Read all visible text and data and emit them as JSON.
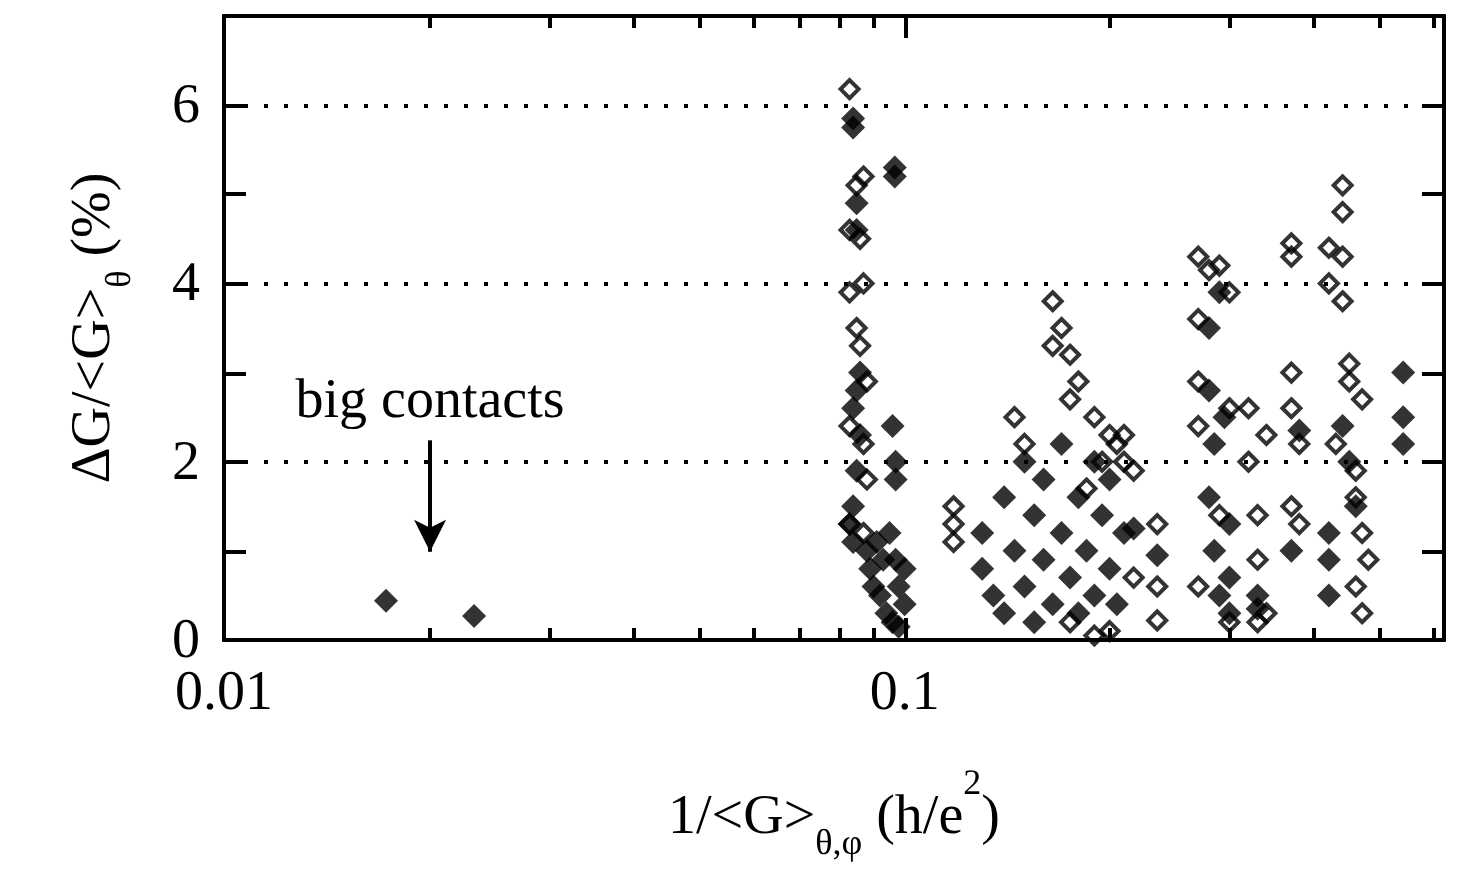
{
  "chart_data": {
    "type": "scatter",
    "xlabel": "1/<G>$_{θ,φ}$ (h/e$^{2}$)",
    "ylabel": "ΔG/<G>$_{θ}$ (%)",
    "log": "x",
    "marker": "diamond",
    "grid": "y",
    "xlim": [
      0.01,
      0.62
    ],
    "xticks": [
      0.01,
      {
        "value": 0.02,
        "label": null
      },
      {
        "value": 0.03,
        "label": null
      },
      {
        "value": 0.04,
        "label": null
      },
      {
        "value": 0.05,
        "label": null
      },
      {
        "value": 0.06,
        "label": null
      },
      {
        "value": 0.07,
        "label": null
      },
      {
        "value": 0.08,
        "label": null
      },
      {
        "value": 0.09,
        "label": null
      },
      0.1,
      {
        "value": 0.2,
        "label": null
      },
      {
        "value": 0.3,
        "label": null
      },
      {
        "value": 0.4,
        "label": null
      },
      {
        "value": 0.5,
        "label": null
      },
      {
        "value": 0.6,
        "label": null
      }
    ],
    "ylim": [
      0,
      7
    ],
    "yticks": [
      0,
      2,
      4,
      6
    ],
    "annotations": [
      "big contacts"
    ],
    "series": [
      {
        "color": "#000000",
        "x": [
          0.0173,
          0.0233,
          0.084,
          0.084,
          0.085,
          0.085,
          0.086,
          0.085,
          0.084,
          0.086,
          0.085,
          0.084,
          0.083,
          0.084,
          0.0967,
          0.0967,
          0.096,
          0.097,
          0.097,
          0.088,
          0.089,
          0.09,
          0.092,
          0.094,
          0.096,
          0.098,
          0.097,
          0.095,
          0.098,
          0.1,
          0.1,
          0.093,
          0.091,
          0.13,
          0.13,
          0.135,
          0.14,
          0.14,
          0.145,
          0.15,
          0.15,
          0.155,
          0.155,
          0.16,
          0.16,
          0.165,
          0.17,
          0.17,
          0.175,
          0.18,
          0.18,
          0.185,
          0.19,
          0.19,
          0.195,
          0.2,
          0.2,
          0.205,
          0.21,
          0.217,
          0.235,
          0.28,
          0.28,
          0.285,
          0.28,
          0.285,
          0.29,
          0.29,
          0.3,
          0.3,
          0.295,
          0.3,
          0.33,
          0.33,
          0.38,
          0.37,
          0.42,
          0.42,
          0.42,
          0.44,
          0.45,
          0.46,
          0.54,
          0.54,
          0.54
        ],
        "values": [
          0.44,
          0.27,
          5.85,
          5.75,
          4.9,
          4.6,
          3.0,
          2.8,
          2.6,
          2.3,
          1.9,
          1.5,
          1.3,
          1.1,
          5.3,
          5.2,
          2.4,
          2.0,
          1.8,
          1.0,
          0.8,
          0.6,
          0.5,
          0.3,
          0.2,
          0.15,
          0.9,
          1.2,
          0.6,
          0.4,
          0.8,
          0.9,
          1.1,
          1.2,
          0.8,
          0.5,
          0.3,
          1.6,
          1.0,
          2.0,
          0.6,
          1.4,
          0.2,
          1.8,
          0.9,
          0.4,
          1.2,
          2.2,
          0.7,
          1.6,
          0.3,
          1.0,
          2.0,
          0.5,
          1.4,
          0.8,
          1.8,
          0.4,
          1.2,
          1.25,
          0.95,
          3.5,
          2.8,
          2.2,
          1.6,
          1.0,
          0.5,
          3.9,
          1.3,
          0.7,
          2.5,
          0.3,
          0.5,
          0.35,
          2.35,
          1.0,
          1.2,
          0.9,
          0.5,
          2.4,
          2.0,
          1.5,
          3.0,
          2.5,
          2.2
        ]
      },
      {
        "color": "#000000",
        "x": [
          0.083,
          0.085,
          0.087,
          0.083,
          0.086,
          0.087,
          0.083,
          0.085,
          0.086,
          0.088,
          0.083,
          0.087,
          0.088,
          0.083,
          0.087,
          0.118,
          0.118,
          0.118,
          0.145,
          0.15,
          0.165,
          0.17,
          0.175,
          0.165,
          0.18,
          0.175,
          0.19,
          0.2,
          0.205,
          0.21,
          0.2,
          0.19,
          0.175,
          0.195,
          0.21,
          0.185,
          0.217,
          0.235,
          0.235,
          0.235,
          0.217,
          0.27,
          0.28,
          0.29,
          0.27,
          0.3,
          0.27,
          0.27,
          0.3,
          0.29,
          0.27,
          0.3,
          0.32,
          0.32,
          0.33,
          0.33,
          0.34,
          0.34,
          0.33,
          0.37,
          0.37,
          0.37,
          0.37,
          0.38,
          0.37,
          0.38,
          0.42,
          0.44,
          0.44,
          0.44,
          0.42,
          0.44,
          0.45,
          0.43,
          0.46,
          0.46,
          0.47,
          0.48,
          0.46,
          0.47,
          0.47,
          0.45
        ],
        "values": [
          6.18,
          5.1,
          5.2,
          4.6,
          4.5,
          4.0,
          3.9,
          3.5,
          3.3,
          2.9,
          2.4,
          2.2,
          1.8,
          1.3,
          1.2,
          1.5,
          1.3,
          1.1,
          2.5,
          2.2,
          3.8,
          3.5,
          3.2,
          3.3,
          2.9,
          2.7,
          2.5,
          2.3,
          2.2,
          2.3,
          0.1,
          0.05,
          0.2,
          2.0,
          2.0,
          1.7,
          1.9,
          1.3,
          0.6,
          0.22,
          0.7,
          4.3,
          4.15,
          4.2,
          3.6,
          3.9,
          2.9,
          2.4,
          2.6,
          1.4,
          0.6,
          0.2,
          2.6,
          2.0,
          1.4,
          0.9,
          2.3,
          0.3,
          0.2,
          4.45,
          4.3,
          3.0,
          2.6,
          2.2,
          1.5,
          1.3,
          4.4,
          5.1,
          4.8,
          4.3,
          4.0,
          3.8,
          2.9,
          2.2,
          1.9,
          1.6,
          1.2,
          0.9,
          0.6,
          0.3,
          2.7,
          3.1
        ]
      }
    ]
  }
}
